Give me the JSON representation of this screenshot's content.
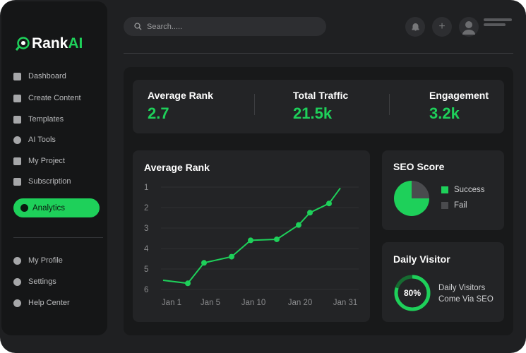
{
  "brand": {
    "name_a": "Rank",
    "name_b": "AI",
    "accent": "#1ed05a"
  },
  "sidebar": {
    "items": [
      {
        "label": "Dashboard",
        "icon": "grid-icon"
      },
      {
        "label": "Create Content",
        "icon": "plus-square-icon"
      },
      {
        "label": "Templates",
        "icon": "layout-icon"
      },
      {
        "label": "AI Tools",
        "icon": "ai-icon"
      },
      {
        "label": "My Project",
        "icon": "edit-icon"
      },
      {
        "label": "Subscription",
        "icon": "subscription-icon"
      },
      {
        "label": "Analytics",
        "icon": "pie-icon",
        "active": true
      }
    ],
    "bottom": [
      {
        "label": "My Profile",
        "icon": "user-icon"
      },
      {
        "label": "Settings",
        "icon": "gear-icon"
      },
      {
        "label": "Help Center",
        "icon": "help-icon"
      }
    ]
  },
  "header": {
    "search_placeholder": "Search....."
  },
  "stats": [
    {
      "label": "Average Rank",
      "value": "2.7"
    },
    {
      "label": "Total Traffic",
      "value": "21.5k"
    },
    {
      "label": "Engagement",
      "value": "3.2k"
    }
  ],
  "chart_data": [
    {
      "type": "line",
      "title": "Average Rank",
      "x_ticks": [
        "Jan 1",
        "Jan 5",
        "Jan 10",
        "Jan 20",
        "Jan 31"
      ],
      "y_ticks": [
        "1",
        "2",
        "3",
        "4",
        "5",
        "6"
      ],
      "ylim": [
        1,
        6
      ],
      "y_inverted": true,
      "grid": true,
      "color": "#1ed05a",
      "values": [
        5.55,
        5.7,
        4.7,
        4.4,
        3.6,
        3.55,
        2.85,
        2.25,
        1.8,
        1.05
      ]
    },
    {
      "type": "pie",
      "title": "SEO Score",
      "slices": [
        {
          "name": "Success",
          "value": 75,
          "color": "#1ed05a"
        },
        {
          "name": "Fail",
          "value": 25,
          "color": "#4a4b4e"
        }
      ],
      "legend": "right"
    }
  ],
  "daily": {
    "title": "Daily Visitor",
    "percent": 80,
    "percent_label": "80%",
    "line1": "Daily Visitors",
    "line2": "Come Via SEO"
  }
}
